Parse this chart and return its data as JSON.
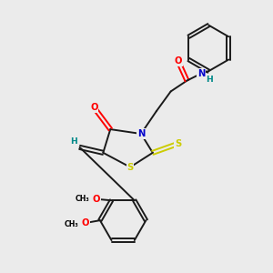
{
  "bg_color": "#ebebeb",
  "atom_colors": {
    "O": "#ff0000",
    "N": "#0000cc",
    "S": "#cccc00",
    "H": "#008888",
    "C": "#000000"
  },
  "bond_color": "#1a1a1a",
  "lw": 1.4,
  "fs": 7.2
}
